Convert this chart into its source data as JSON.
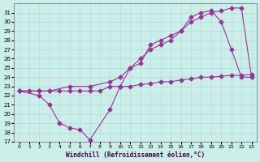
{
  "title": "",
  "xlabel": "Windchill (Refroidissement éolien,°C)",
  "ylabel": "",
  "bg_color": "#cceee8",
  "grid_color": "#aadddd",
  "line_color": "#993399",
  "xlim": [
    -0.5,
    23.5
  ],
  "ylim": [
    17,
    32
  ],
  "yticks": [
    17,
    18,
    19,
    20,
    21,
    22,
    23,
    24,
    25,
    26,
    27,
    28,
    29,
    30,
    31
  ],
  "xticks": [
    0,
    1,
    2,
    3,
    4,
    5,
    6,
    7,
    8,
    9,
    10,
    11,
    12,
    13,
    14,
    15,
    16,
    17,
    18,
    19,
    20,
    21,
    22,
    23
  ],
  "line1_x": [
    0,
    1,
    2,
    3,
    4,
    5,
    6,
    7,
    8,
    9,
    10,
    11,
    12,
    13,
    14,
    15,
    16,
    17,
    18,
    19,
    20,
    21,
    22,
    23
  ],
  "line1_y": [
    22.5,
    22.5,
    22.5,
    22.5,
    22.5,
    22.5,
    22.5,
    22.5,
    22.5,
    23.0,
    23.0,
    23.0,
    23.2,
    23.3,
    23.5,
    23.5,
    23.7,
    23.8,
    24.0,
    24.0,
    24.1,
    24.2,
    24.2,
    24.3
  ],
  "line2_x": [
    0,
    2,
    3,
    4,
    5,
    6,
    7,
    9,
    10,
    11,
    12,
    13,
    14,
    15,
    16,
    17,
    18,
    19,
    20,
    21,
    22,
    23
  ],
  "line2_y": [
    22.5,
    22.0,
    21.0,
    19.0,
    18.5,
    18.3,
    17.2,
    20.5,
    23.0,
    25.0,
    25.5,
    27.5,
    28.0,
    28.5,
    29.0,
    30.5,
    31.0,
    31.2,
    30.0,
    27.0,
    24.0,
    24.0
  ],
  "line3_x": [
    0,
    2,
    3,
    5,
    7,
    9,
    10,
    11,
    12,
    13,
    14,
    15,
    16,
    17,
    18,
    19,
    20,
    21,
    22,
    23
  ],
  "line3_y": [
    22.5,
    22.5,
    22.5,
    23.0,
    23.0,
    23.5,
    24.0,
    25.0,
    26.0,
    27.0,
    27.5,
    28.0,
    29.0,
    30.0,
    30.5,
    31.0,
    31.2,
    31.5,
    31.5,
    24.0
  ]
}
